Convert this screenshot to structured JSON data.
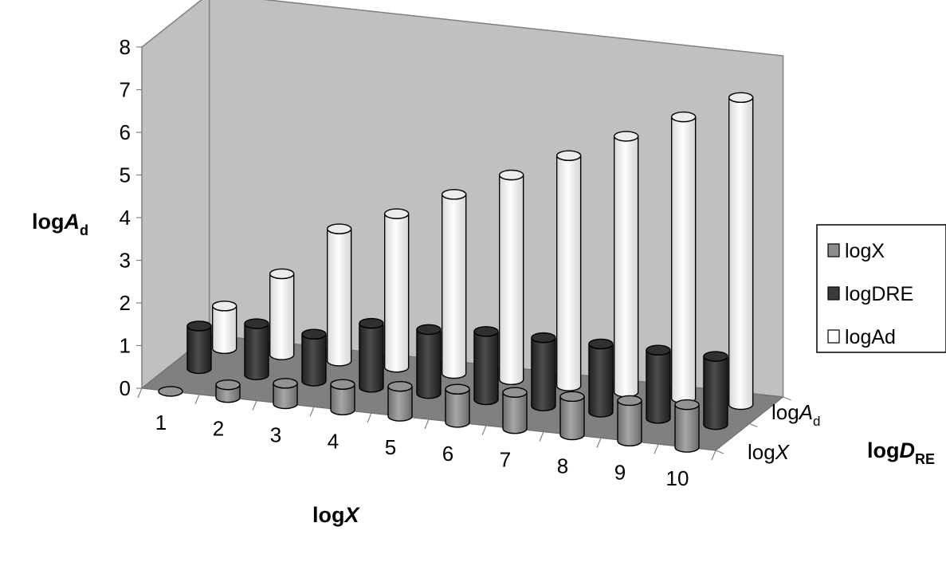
{
  "chart_data": {
    "type": "bar",
    "subtype": "3d-column",
    "categories": [
      "1",
      "2",
      "3",
      "4",
      "5",
      "6",
      "7",
      "8",
      "9",
      "10"
    ],
    "series": [
      {
        "name": "logX",
        "color": "#8c8c8c",
        "values": [
          0.0,
          0.3,
          0.48,
          0.6,
          0.7,
          0.78,
          0.85,
          0.9,
          0.95,
          1.0
        ]
      },
      {
        "name": "logDRE",
        "color": "#3a3a3a",
        "values": [
          1.0,
          1.2,
          1.1,
          1.5,
          1.5,
          1.6,
          1.6,
          1.6,
          1.6,
          1.6
        ]
      },
      {
        "name": "logAd",
        "color": "#ffffff",
        "values": [
          1.0,
          1.9,
          3.1,
          3.6,
          4.2,
          4.8,
          5.4,
          6.0,
          6.6,
          7.2
        ]
      }
    ],
    "ylim": [
      0,
      8
    ],
    "yticks": [
      "0",
      "1",
      "2",
      "3",
      "4",
      "5",
      "6",
      "7",
      "8"
    ],
    "ylabel": {
      "main": "log",
      "italic": "A",
      "sub": "d"
    },
    "xlabel": {
      "main": "log",
      "italic": "X"
    },
    "zlabel": {
      "main": "log",
      "italic": "D",
      "sub": "RE"
    },
    "z_categories": [
      {
        "main": "log",
        "italic": "X",
        "sub": ""
      },
      {
        "main": "log",
        "italic": "A",
        "sub": "d"
      }
    ],
    "legend": {
      "position": "right",
      "entries": [
        "logX",
        "logDRE",
        "logAd"
      ]
    },
    "grid": false
  }
}
